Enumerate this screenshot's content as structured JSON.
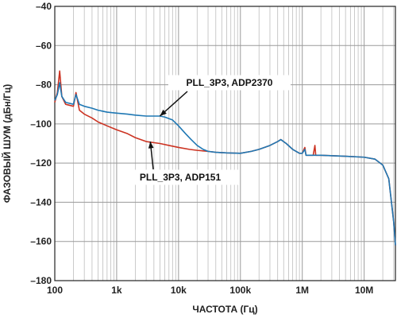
{
  "chart_data": {
    "type": "line",
    "xscale": "log",
    "xlim": [
      100,
      32000000
    ],
    "ylim": [
      -180,
      -40
    ],
    "xlabel": "ЧАСТОТА (Гц)",
    "ylabel": "ФАЗОВЫЙ ШУМ (дБн/Гц)",
    "grid": true,
    "x_ticks": [
      {
        "value": 100,
        "label": "100"
      },
      {
        "value": 1000,
        "label": "1k"
      },
      {
        "value": 10000,
        "label": "10k"
      },
      {
        "value": 100000,
        "label": "100k"
      },
      {
        "value": 1000000,
        "label": "1M"
      },
      {
        "value": 10000000,
        "label": "10M"
      }
    ],
    "y_ticks": [
      {
        "value": -40,
        "label": "–40"
      },
      {
        "value": -60,
        "label": "–60"
      },
      {
        "value": -80,
        "label": "–80"
      },
      {
        "value": -100,
        "label": "–100"
      },
      {
        "value": -120,
        "label": "–120"
      },
      {
        "value": -140,
        "label": "–140"
      },
      {
        "value": -160,
        "label": "–160"
      },
      {
        "value": -180,
        "label": "–180"
      }
    ],
    "series": [
      {
        "name": "PLL_3P3, ADP2370",
        "color": "#1f78b4",
        "points": [
          [
            100,
            -88
          ],
          [
            110,
            -85
          ],
          [
            120,
            -79
          ],
          [
            130,
            -86
          ],
          [
            150,
            -89
          ],
          [
            200,
            -90
          ],
          [
            220,
            -85
          ],
          [
            250,
            -90
          ],
          [
            300,
            -91
          ],
          [
            400,
            -92
          ],
          [
            500,
            -93
          ],
          [
            700,
            -94
          ],
          [
            1000,
            -94.5
          ],
          [
            1500,
            -95
          ],
          [
            2000,
            -95.5
          ],
          [
            3000,
            -96
          ],
          [
            4000,
            -96
          ],
          [
            5000,
            -96
          ],
          [
            6000,
            -96.5
          ],
          [
            8000,
            -98
          ],
          [
            10000,
            -101
          ],
          [
            13000,
            -105
          ],
          [
            16000,
            -108
          ],
          [
            20000,
            -111
          ],
          [
            25000,
            -113
          ],
          [
            30000,
            -114
          ],
          [
            40000,
            -114.5
          ],
          [
            60000,
            -114.8
          ],
          [
            100000,
            -115
          ],
          [
            150000,
            -114
          ],
          [
            200000,
            -113
          ],
          [
            300000,
            -111
          ],
          [
            400000,
            -109
          ],
          [
            450000,
            -108
          ],
          [
            550000,
            -110
          ],
          [
            700000,
            -113
          ],
          [
            900000,
            -115
          ],
          [
            1000000,
            -115
          ],
          [
            1100000,
            -113
          ],
          [
            1150000,
            -116
          ],
          [
            1500000,
            -116
          ],
          [
            2000000,
            -116
          ],
          [
            5000000,
            -116.5
          ],
          [
            10000000,
            -117
          ],
          [
            15000000,
            -118
          ],
          [
            20000000,
            -121
          ],
          [
            25000000,
            -128
          ],
          [
            30000000,
            -150
          ],
          [
            32000000,
            -162
          ]
        ]
      },
      {
        "name": "PLL_3P3, ADP151",
        "color": "#cc3322",
        "points": [
          [
            100,
            -89
          ],
          [
            110,
            -84
          ],
          [
            120,
            -73
          ],
          [
            130,
            -86
          ],
          [
            150,
            -90
          ],
          [
            200,
            -91
          ],
          [
            220,
            -84
          ],
          [
            250,
            -93
          ],
          [
            300,
            -95
          ],
          [
            400,
            -97
          ],
          [
            500,
            -99
          ],
          [
            700,
            -101
          ],
          [
            1000,
            -103
          ],
          [
            1500,
            -105
          ],
          [
            2000,
            -107
          ],
          [
            3000,
            -109
          ],
          [
            5000,
            -110
          ],
          [
            7000,
            -111
          ],
          [
            10000,
            -112
          ],
          [
            15000,
            -113
          ],
          [
            20000,
            -113.5
          ],
          [
            30000,
            -114
          ],
          [
            40000,
            -114.5
          ],
          [
            60000,
            -114.8
          ],
          [
            100000,
            -115
          ],
          [
            150000,
            -114
          ],
          [
            200000,
            -113
          ],
          [
            300000,
            -111
          ],
          [
            400000,
            -109
          ],
          [
            450000,
            -108
          ],
          [
            550000,
            -110
          ],
          [
            700000,
            -113
          ],
          [
            900000,
            -115
          ],
          [
            1000000,
            -115
          ],
          [
            1100000,
            -112
          ],
          [
            1150000,
            -116
          ],
          [
            1500000,
            -116
          ],
          [
            1600000,
            -111
          ],
          [
            1650000,
            -116
          ],
          [
            2000000,
            -116
          ],
          [
            5000000,
            -116.5
          ],
          [
            10000000,
            -117
          ],
          [
            15000000,
            -118
          ],
          [
            20000000,
            -121
          ],
          [
            25000000,
            -128
          ],
          [
            30000000,
            -150
          ],
          [
            32000000,
            -162
          ]
        ]
      }
    ],
    "annotations": [
      {
        "text": "PLL_3P3, ADP2370",
        "series": 0,
        "point_x": 5000,
        "point_y": -96
      },
      {
        "text": "PLL_3P3, ADP151",
        "series": 1,
        "point_x": 3500,
        "point_y": -109
      }
    ]
  }
}
